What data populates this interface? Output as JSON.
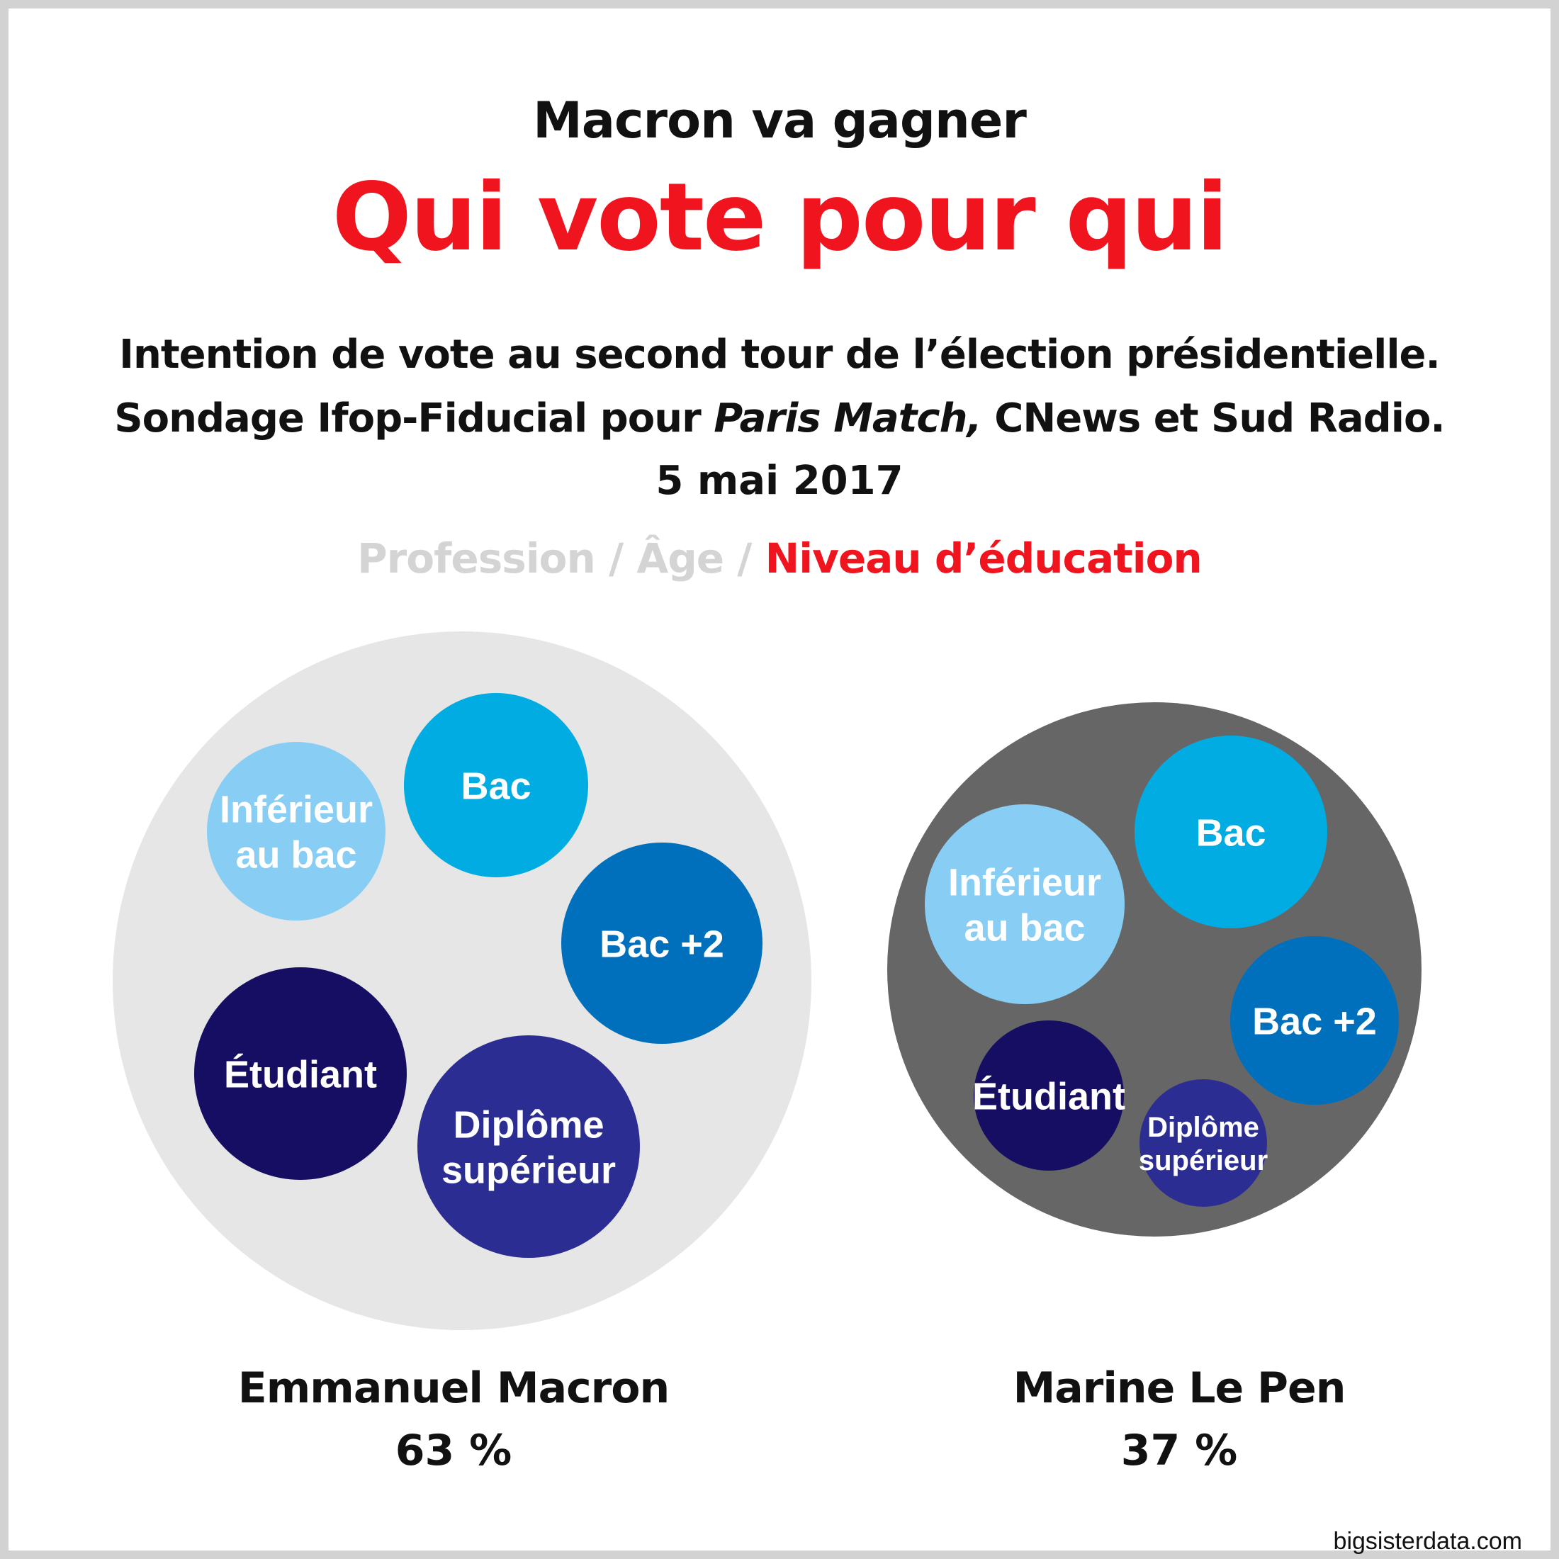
{
  "header": {
    "kicker": "Macron va gagner",
    "title": "Qui vote pour qui",
    "subtitle_line1": "Intention de vote au second tour de l’élection présidentielle.",
    "subtitle_line2_before": "Sondage Ifop-Fiducial pour ",
    "subtitle_line2_italic": "Paris Match,",
    "subtitle_line2_after": " CNews et Sud Radio.",
    "date": "5 mai 2017"
  },
  "tabs": {
    "profession": "Profession",
    "sep1": " / ",
    "age": "Âge",
    "sep2": " / ",
    "education": "Niveau d’éducation"
  },
  "credit": "bigsisterdata.com",
  "colors": {
    "accent_red": "#f0141e",
    "inferieur_au_bac": "#87cdf4",
    "bac": "#00ace2",
    "bac_plus_2": "#0070bc",
    "diplome_superieur": "#2b2d92",
    "etudiant": "#160e62",
    "macron_bg": "#e6e6e7",
    "lepen_bg": "#666666"
  },
  "chart_data": {
    "type": "bubble",
    "title": "Qui vote pour qui",
    "groups": [
      {
        "candidate": "Emmanuel Macron",
        "value_label": "63 %",
        "value": 63,
        "color": "#e6e6e7",
        "bubbles": [
          {
            "category": "Inférieur au bac",
            "lines": [
              "Inférieur",
              "au bac"
            ],
            "color": "#87cdf4"
          },
          {
            "category": "Bac",
            "lines": [
              "Bac"
            ],
            "color": "#00ace2"
          },
          {
            "category": "Bac +2",
            "lines": [
              "Bac +2"
            ],
            "color": "#0070bc"
          },
          {
            "category": "Étudiant",
            "lines": [
              "Étudiant"
            ],
            "color": "#160e62"
          },
          {
            "category": "Diplôme supérieur",
            "lines": [
              "Diplôme",
              "supérieur"
            ],
            "color": "#2b2d92"
          }
        ]
      },
      {
        "candidate": "Marine Le Pen",
        "value_label": "37 %",
        "value": 37,
        "color": "#666666",
        "bubbles": [
          {
            "category": "Inférieur au bac",
            "lines": [
              "Inférieur",
              "au bac"
            ],
            "color": "#87cdf4"
          },
          {
            "category": "Bac",
            "lines": [
              "Bac"
            ],
            "color": "#00ace2"
          },
          {
            "category": "Bac +2",
            "lines": [
              "Bac +2"
            ],
            "color": "#0070bc"
          },
          {
            "category": "Étudiant",
            "lines": [
              "Étudiant"
            ],
            "color": "#160e62"
          },
          {
            "category": "Diplôme supérieur",
            "lines": [
              "Diplôme",
              "supérieur"
            ],
            "color": "#2b2d92"
          }
        ]
      }
    ]
  }
}
